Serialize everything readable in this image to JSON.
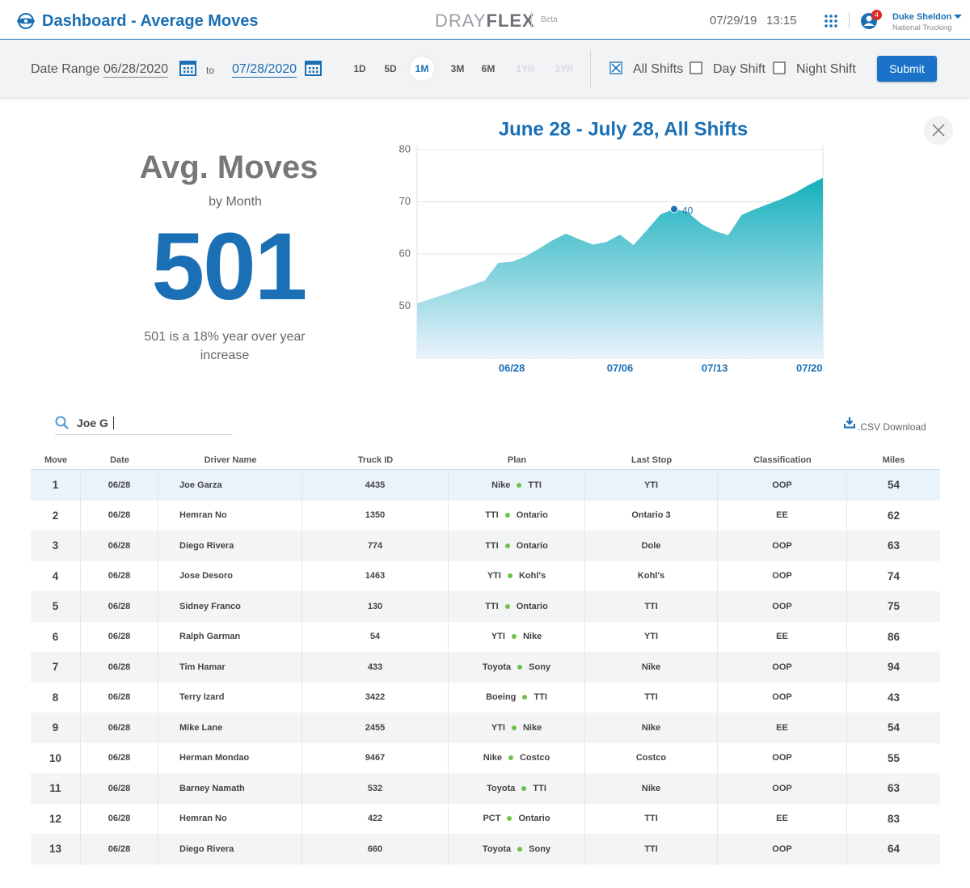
{
  "header": {
    "title": "Dashboard - Average Moves",
    "brand_light": "DRAY",
    "brand_bold": "FLEX",
    "badge": "Beta",
    "date": "07/29/19",
    "time": "13:15",
    "notifications": 4,
    "user_name": "Duke Sheldon",
    "company": "National Trucking"
  },
  "filters": {
    "label": "Date Range",
    "start": "06/28/2020",
    "separator": "to",
    "end": "07/28/2020",
    "ranges": [
      {
        "label": "1D",
        "state": "enabled"
      },
      {
        "label": "5D",
        "state": "enabled"
      },
      {
        "label": "1M",
        "state": "selected"
      },
      {
        "label": "3M",
        "state": "enabled"
      },
      {
        "label": "6M",
        "state": "enabled"
      },
      {
        "label": "1YR",
        "state": "disabled"
      },
      {
        "label": "3YR",
        "state": "disabled"
      }
    ],
    "shifts": [
      {
        "label": "All Shifts",
        "checked": true
      },
      {
        "label": "Day Shift",
        "checked": false
      },
      {
        "label": "Night Shift",
        "checked": false
      }
    ],
    "submit": "Submit"
  },
  "summary": {
    "title": "Avg. Moves",
    "subtitle": "by Month",
    "value": 501,
    "note": "501 is a 18% year over year increase"
  },
  "chart_data": {
    "type": "area",
    "title": "June 28 - July 28, All Shifts",
    "categories": [
      null,
      null,
      null,
      null,
      null,
      null,
      null,
      "06/28",
      null,
      null,
      null,
      null,
      null,
      null,
      null,
      "07/06",
      null,
      null,
      null,
      null,
      null,
      null,
      "07/13",
      null,
      null,
      null,
      null,
      null,
      null,
      "07/20",
      null
    ],
    "values": [
      50.5,
      51.4,
      52.2,
      53.1,
      54.0,
      54.9,
      58.3,
      58.5,
      59.5,
      61.0,
      62.6,
      63.9,
      62.8,
      61.8,
      62.3,
      63.7,
      61.7,
      64.6,
      67.6,
      68.6,
      68.0,
      65.8,
      64.4,
      63.6,
      67.5,
      68.6,
      69.6,
      70.6,
      71.8,
      73.3,
      74.6
    ],
    "ylim": [
      40,
      80
    ],
    "yticks": [
      50,
      60,
      70,
      80
    ],
    "grid": true,
    "color": "#13b0bc",
    "annotation": {
      "text": "40",
      "point": 19
    }
  },
  "search": {
    "query": "Joe G",
    "download": ".CSV Download"
  },
  "table": {
    "columns": [
      "Move",
      "Date",
      "Driver Name",
      "Truck ID",
      "Plan",
      "Last Stop",
      "Classification",
      "Miles"
    ],
    "selected_row": 0,
    "rows": [
      [
        1,
        "06/28",
        "Joe Garza",
        4435,
        [
          "Nike",
          "TTI"
        ],
        "YTI",
        "OOP",
        54
      ],
      [
        2,
        "06/28",
        "Hemran No",
        1350,
        [
          "TTI",
          "Ontario"
        ],
        "Ontario 3",
        "EE",
        62
      ],
      [
        3,
        "06/28",
        "Diego Rivera",
        774,
        [
          "TTI",
          "Ontario"
        ],
        "Dole",
        "OOP",
        63
      ],
      [
        4,
        "06/28",
        "Jose Desoro",
        1463,
        [
          "YTI",
          "Kohl's"
        ],
        "Kohl's",
        "OOP",
        74
      ],
      [
        5,
        "06/28",
        "Sidney Franco",
        130,
        [
          "TTI",
          "Ontario"
        ],
        "TTI",
        "OOP",
        75
      ],
      [
        6,
        "06/28",
        "Ralph Garman",
        54,
        [
          "YTI",
          "Nike"
        ],
        "YTI",
        "EE",
        86
      ],
      [
        7,
        "06/28",
        "Tim Hamar",
        433,
        [
          "Toyota",
          "Sony"
        ],
        "Nike",
        "OOP",
        94
      ],
      [
        8,
        "06/28",
        "Terry Izard",
        3422,
        [
          "Boeing",
          "TTI"
        ],
        "TTI",
        "OOP",
        43
      ],
      [
        9,
        "06/28",
        "Mike Lane",
        2455,
        [
          "YTI",
          "Nike"
        ],
        "Nike",
        "EE",
        54
      ],
      [
        10,
        "06/28",
        "Herman Mondao",
        9467,
        [
          "Nike",
          "Costco"
        ],
        "Costco",
        "OOP",
        55
      ],
      [
        11,
        "06/28",
        "Barney Namath",
        532,
        [
          "Toyota",
          "TTI"
        ],
        "Nike",
        "OOP",
        63
      ],
      [
        12,
        "06/28",
        "Hemran No",
        422,
        [
          "PCT",
          "Ontario"
        ],
        "TTI",
        "EE",
        83
      ],
      [
        13,
        "06/28",
        "Diego Rivera",
        660,
        [
          "Toyota",
          "Sony"
        ],
        "TTI",
        "OOP",
        64
      ]
    ]
  }
}
